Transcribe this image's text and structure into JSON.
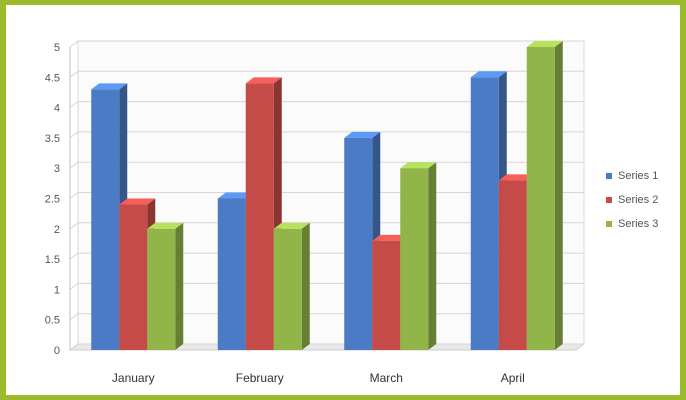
{
  "chart_data": {
    "type": "bar",
    "categories": [
      "January",
      "February",
      "March",
      "April"
    ],
    "series": [
      {
        "name": "Series 1",
        "values": [
          4.3,
          2.5,
          3.5,
          4.5
        ],
        "color": "#4a7bc4"
      },
      {
        "name": "Series 2",
        "values": [
          2.4,
          4.4,
          1.8,
          2.8
        ],
        "color": "#c54b48"
      },
      {
        "name": "Series 3",
        "values": [
          2.0,
          2.0,
          3.0,
          5.0
        ],
        "color": "#92b54a"
      }
    ],
    "yticks": [
      "0",
      "0.5",
      "1",
      "1.5",
      "2",
      "2.5",
      "3",
      "3.5",
      "4",
      "4.5",
      "5"
    ],
    "ylim": [
      0,
      5
    ],
    "grid": true,
    "legend": "right",
    "title": "",
    "xlabel": "",
    "ylabel": ""
  }
}
